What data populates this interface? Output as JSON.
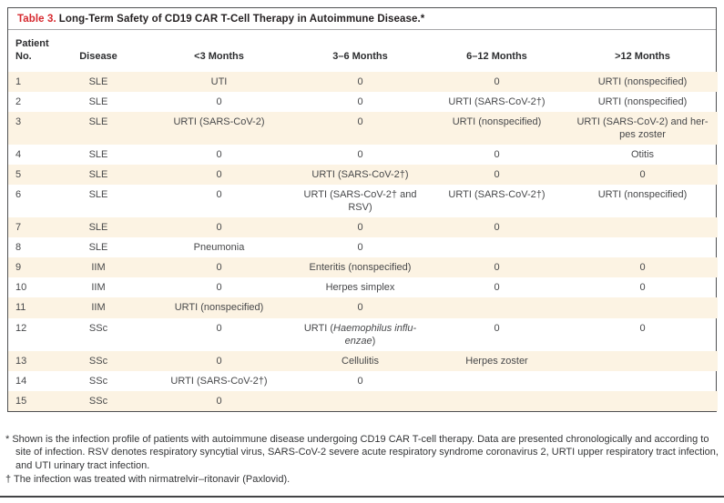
{
  "table": {
    "label": "Table 3.",
    "title": "Long-Term Safety of CD19 CAR T-Cell Therapy in Autoimmune Disease.*",
    "columns": [
      "Patient\nNo.",
      "Disease",
      "<3 Months",
      "3–6 Months",
      "6–12 Months",
      ">12 Months"
    ],
    "rows": [
      {
        "no": "1",
        "disease": "SLE",
        "cells": [
          "UTI",
          "0",
          "0",
          "URTI (nonspecified)"
        ]
      },
      {
        "no": "2",
        "disease": "SLE",
        "cells": [
          "0",
          "0",
          "URTI (SARS-CoV-2†)",
          "URTI (nonspecified)"
        ]
      },
      {
        "no": "3",
        "disease": "SLE",
        "cells": [
          "URTI (SARS-CoV-2)",
          "0",
          "URTI (nonspecified)",
          "URTI (SARS-CoV-2) and her-\npes zoster"
        ]
      },
      {
        "no": "4",
        "disease": "SLE",
        "cells": [
          "0",
          "0",
          "0",
          "Otitis"
        ]
      },
      {
        "no": "5",
        "disease": "SLE",
        "cells": [
          "0",
          "URTI (SARS-CoV-2†)",
          "0",
          "0"
        ]
      },
      {
        "no": "6",
        "disease": "SLE",
        "cells": [
          "0",
          "URTI (SARS-CoV-2† and\nRSV)",
          "URTI (SARS-CoV-2†)",
          "URTI (nonspecified)"
        ]
      },
      {
        "no": "7",
        "disease": "SLE",
        "cells": [
          "0",
          "0",
          "0",
          ""
        ]
      },
      {
        "no": "8",
        "disease": "SLE",
        "cells": [
          "Pneumonia",
          "0",
          "",
          ""
        ]
      },
      {
        "no": "9",
        "disease": "IIM",
        "cells": [
          "0",
          "Enteritis (nonspecified)",
          "0",
          "0"
        ]
      },
      {
        "no": "10",
        "disease": "IIM",
        "cells": [
          "0",
          "Herpes simplex",
          "0",
          "0"
        ]
      },
      {
        "no": "11",
        "disease": "IIM",
        "cells": [
          "URTI (nonspecified)",
          "0",
          "",
          ""
        ]
      },
      {
        "no": "12",
        "disease": "SSc",
        "cells": [
          "0",
          {
            "segments": [
              {
                "text": "URTI ("
              },
              {
                "text": "Haemophilus influ-\nenzae",
                "italic": true
              },
              {
                "text": ")"
              }
            ]
          },
          "0",
          "0"
        ]
      },
      {
        "no": "13",
        "disease": "SSc",
        "cells": [
          "0",
          "Cellulitis",
          "Herpes zoster",
          ""
        ]
      },
      {
        "no": "14",
        "disease": "SSc",
        "cells": [
          "URTI (SARS-CoV-2†)",
          "0",
          "",
          ""
        ]
      },
      {
        "no": "15",
        "disease": "SSc",
        "cells": [
          "0",
          "",
          "",
          ""
        ]
      }
    ],
    "colors": {
      "accent_red": "#d6282e",
      "row_stripe": "#fcf3e3",
      "border": "#4f5052",
      "body_text": "#47484a"
    }
  },
  "footnotes": [
    {
      "marker": "*",
      "text": "Shown is the infection profile of patients with autoimmune disease undergoing CD19 CAR T-cell therapy. Data are presented chronologically and according to site of infection. RSV denotes respiratory syncytial virus, SARS-CoV-2 severe acute respiratory syndrome coronavirus 2, URTI upper respiratory tract infection, and UTI urinary tract infection."
    },
    {
      "marker": "†",
      "text": "The infection was treated with nirmatrelvir–ritonavir (Paxlovid)."
    }
  ]
}
